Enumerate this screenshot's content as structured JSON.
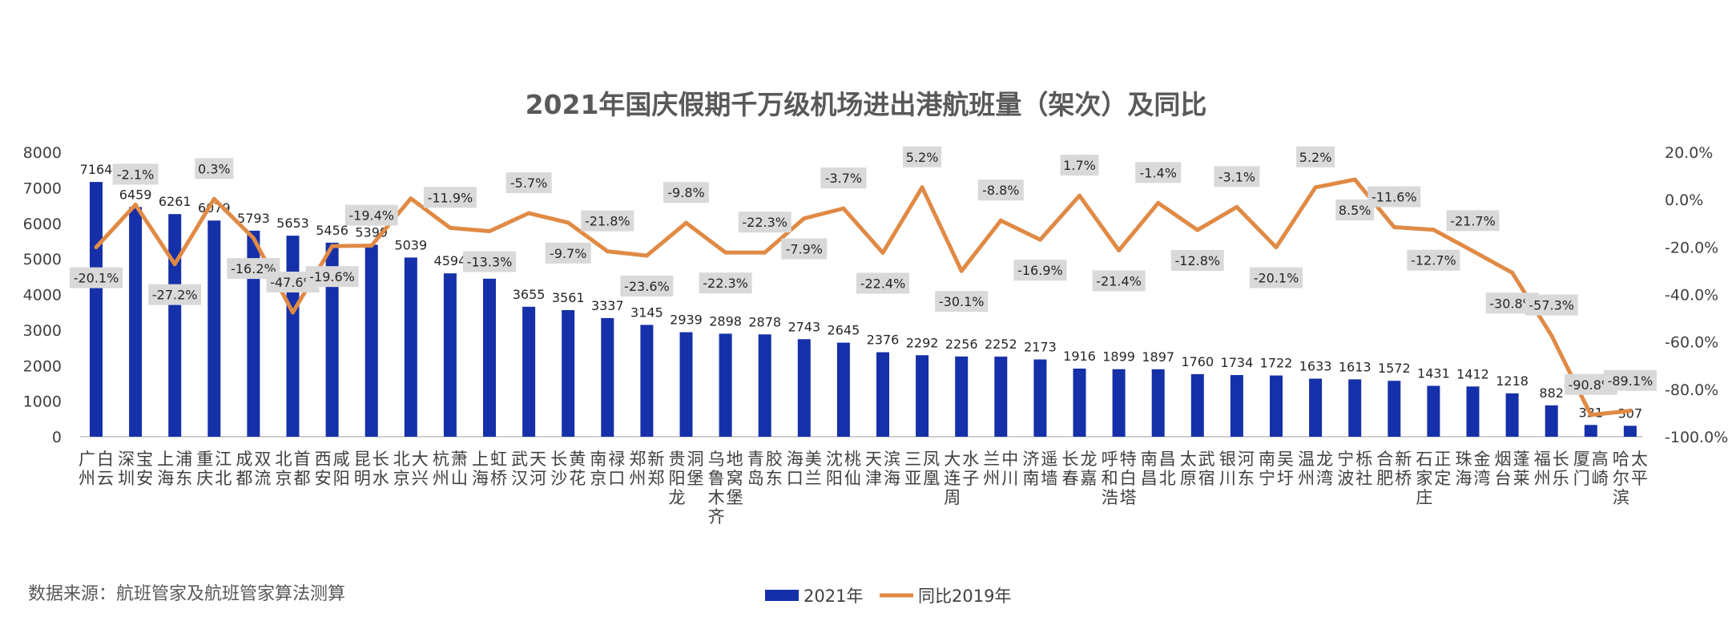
{
  "chart_data": {
    "type": "bar+line",
    "title": "2021年国庆假期千万级机场进出港航班量（架次）及同比",
    "source": "数据来源：航班管家及航班管家算法测算",
    "y_left": {
      "ylim": [
        0,
        8000
      ],
      "ticks": [
        "0",
        "1000",
        "2000",
        "3000",
        "4000",
        "5000",
        "6000",
        "7000",
        "8000"
      ]
    },
    "y_right": {
      "ylim": [
        -100,
        20
      ],
      "ticks": [
        "-100.0%",
        "-80.0%",
        "-60.0%",
        "-40.0%",
        "-20.0%",
        "0.0%",
        "20.0%"
      ]
    },
    "legend_position": "bottom",
    "colors": {
      "bar": "#1530a8",
      "line": "#e08a45",
      "label_bg": "#d9d9d9"
    },
    "categories": [
      "广州白云",
      "深圳宝安",
      "上海浦东",
      "重庆江北",
      "成都双流",
      "北京首都",
      "西安咸阳",
      "昆明长水",
      "北京大兴",
      "杭州萧山",
      "上海虹桥",
      "武汉天河",
      "长沙黄花",
      "南京禄口",
      "郑州新郑",
      "贵阳龙洞堡",
      "乌鲁木齐地窝堡",
      "青岛胶东",
      "海口美兰",
      "沈阳桃仙",
      "天津滨海",
      "三亚凤凰",
      "大连周水子",
      "兰州中川",
      "济南遥墙",
      "长春龙嘉",
      "呼和浩特白塔",
      "南昌昌北",
      "太原武宿",
      "银川河东",
      "南宁吴圩",
      "温州龙湾",
      "宁波栎社",
      "合肥新桥",
      "石家庄正定",
      "珠海金湾",
      "烟台蓬莱",
      "福州长乐",
      "厦门高崎",
      "哈尔滨太平"
    ],
    "series": [
      {
        "name": "2021年",
        "type": "bar",
        "values": [
          7164,
          6459,
          6261,
          6079,
          5793,
          5653,
          5456,
          5399,
          5039,
          4594,
          4444,
          3655,
          3561,
          3337,
          3145,
          2939,
          2898,
          2878,
          2743,
          2645,
          2376,
          2292,
          2256,
          2252,
          2173,
          1916,
          1899,
          1897,
          1760,
          1734,
          1722,
          1633,
          1613,
          1572,
          1431,
          1412,
          1218,
          882,
          331,
          307
        ]
      },
      {
        "name": "同比2019年",
        "type": "line",
        "values": [
          -20.1,
          -2.1,
          -27.2,
          0.3,
          -16.2,
          -47.6,
          -19.6,
          -19.4,
          0.5,
          -11.9,
          -13.3,
          -5.7,
          -9.7,
          -21.8,
          -23.6,
          -9.8,
          -22.3,
          -22.3,
          -7.9,
          -3.7,
          -22.4,
          5.2,
          -30.1,
          -8.8,
          -16.9,
          1.7,
          -21.4,
          -1.4,
          -12.8,
          -3.1,
          -20.1,
          5.2,
          8.5,
          -11.6,
          -12.7,
          -21.7,
          -30.8,
          -57.3,
          -90.8,
          -89.1
        ],
        "labels": [
          "-20.1%",
          "-2.1%",
          "-27.2%",
          "0.3%",
          "-16.2%",
          "-47.6%",
          "-19.6%",
          "-19.4%",
          "",
          "-11.9%",
          "-13.3%",
          "-5.7%",
          "-9.7%",
          "-21.8%",
          "-23.6%",
          "-9.8%",
          "-22.3%",
          "-22.3%",
          "-7.9%",
          "-3.7%",
          "-22.4%",
          "5.2%",
          "-30.1%",
          "-8.8%",
          "-16.9%",
          "1.7%",
          "-21.4%",
          "-1.4%",
          "-12.8%",
          "-3.1%",
          "-20.1%",
          "5.2%",
          "8.5%",
          "-11.6%",
          "-12.7%",
          "-21.7%",
          "-30.8%",
          "-57.3%",
          "-90.8%",
          "-89.1%"
        ]
      }
    ]
  }
}
